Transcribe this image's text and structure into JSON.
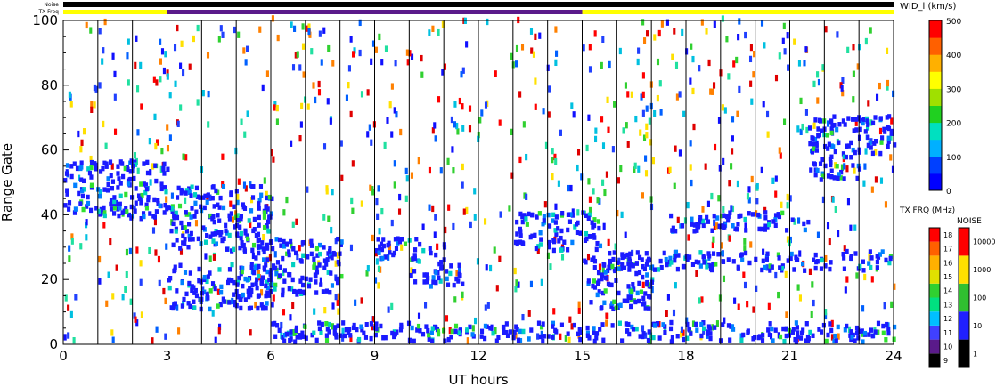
{
  "chart_data": {
    "type": "heatmap",
    "title": "",
    "xlabel": "UT hours",
    "ylabel": "Range Gate",
    "xlim": [
      0,
      24
    ],
    "ylim": [
      0,
      100
    ],
    "xticks": [
      "0",
      "3",
      "6",
      "9",
      "12",
      "15",
      "18",
      "21",
      "24"
    ],
    "yticks": [
      "0",
      "20",
      "40",
      "60",
      "80",
      "100"
    ],
    "grid": "vertical lines every 1 hour",
    "top_bars": {
      "noise_label": "Noise",
      "txfreq_label": "TX Freq",
      "txfreq_segments": [
        {
          "start": 0,
          "end": 3,
          "color": "#ffff00"
        },
        {
          "start": 3,
          "end": 15,
          "color": "#5a1a8a"
        },
        {
          "start": 15,
          "end": 24,
          "color": "#ffff00"
        }
      ]
    },
    "colorbar_width": {
      "label": "WID_l (km/s)",
      "ticks": [
        "0",
        "100",
        "200",
        "300",
        "400",
        "500"
      ],
      "range": [
        0,
        500
      ]
    },
    "colorbar_freq": {
      "label": "TX FRQ (MHz)",
      "ticks": [
        "9",
        "10",
        "11",
        "12",
        "13",
        "14",
        "15",
        "16",
        "17",
        "18"
      ]
    },
    "colorbar_noise": {
      "label": "NOISE",
      "ticks": [
        "1",
        "10",
        "100",
        "1000",
        "10000"
      ]
    },
    "echo_regions": [
      {
        "t0": 0.0,
        "t1": 3.0,
        "r0": 38,
        "r1": 56,
        "note": "decreasing band"
      },
      {
        "t0": 3.0,
        "t1": 6.0,
        "r0": 28,
        "r1": 48
      },
      {
        "t0": 3.0,
        "t1": 6.0,
        "r0": 10,
        "r1": 24
      },
      {
        "t0": 5.5,
        "t1": 8.0,
        "r0": 14,
        "r1": 32
      },
      {
        "t0": 6.0,
        "t1": 24.0,
        "r0": 0,
        "r1": 6
      },
      {
        "t0": 9.0,
        "t1": 11.0,
        "r0": 25,
        "r1": 32
      },
      {
        "t0": 10.0,
        "t1": 11.5,
        "r0": 17,
        "r1": 25
      },
      {
        "t0": 13.0,
        "t1": 15.5,
        "r0": 28,
        "r1": 40
      },
      {
        "t0": 15.0,
        "t1": 17.0,
        "r0": 10,
        "r1": 26
      },
      {
        "t0": 15.5,
        "t1": 24.0,
        "r0": 22,
        "r1": 28
      },
      {
        "t0": 17.5,
        "t1": 21.5,
        "r0": 34,
        "r1": 40
      },
      {
        "t0": 21.5,
        "t1": 23.0,
        "r0": 50,
        "r1": 70
      },
      {
        "t0": 23.0,
        "t1": 24.0,
        "r0": 58,
        "r1": 70
      }
    ]
  }
}
